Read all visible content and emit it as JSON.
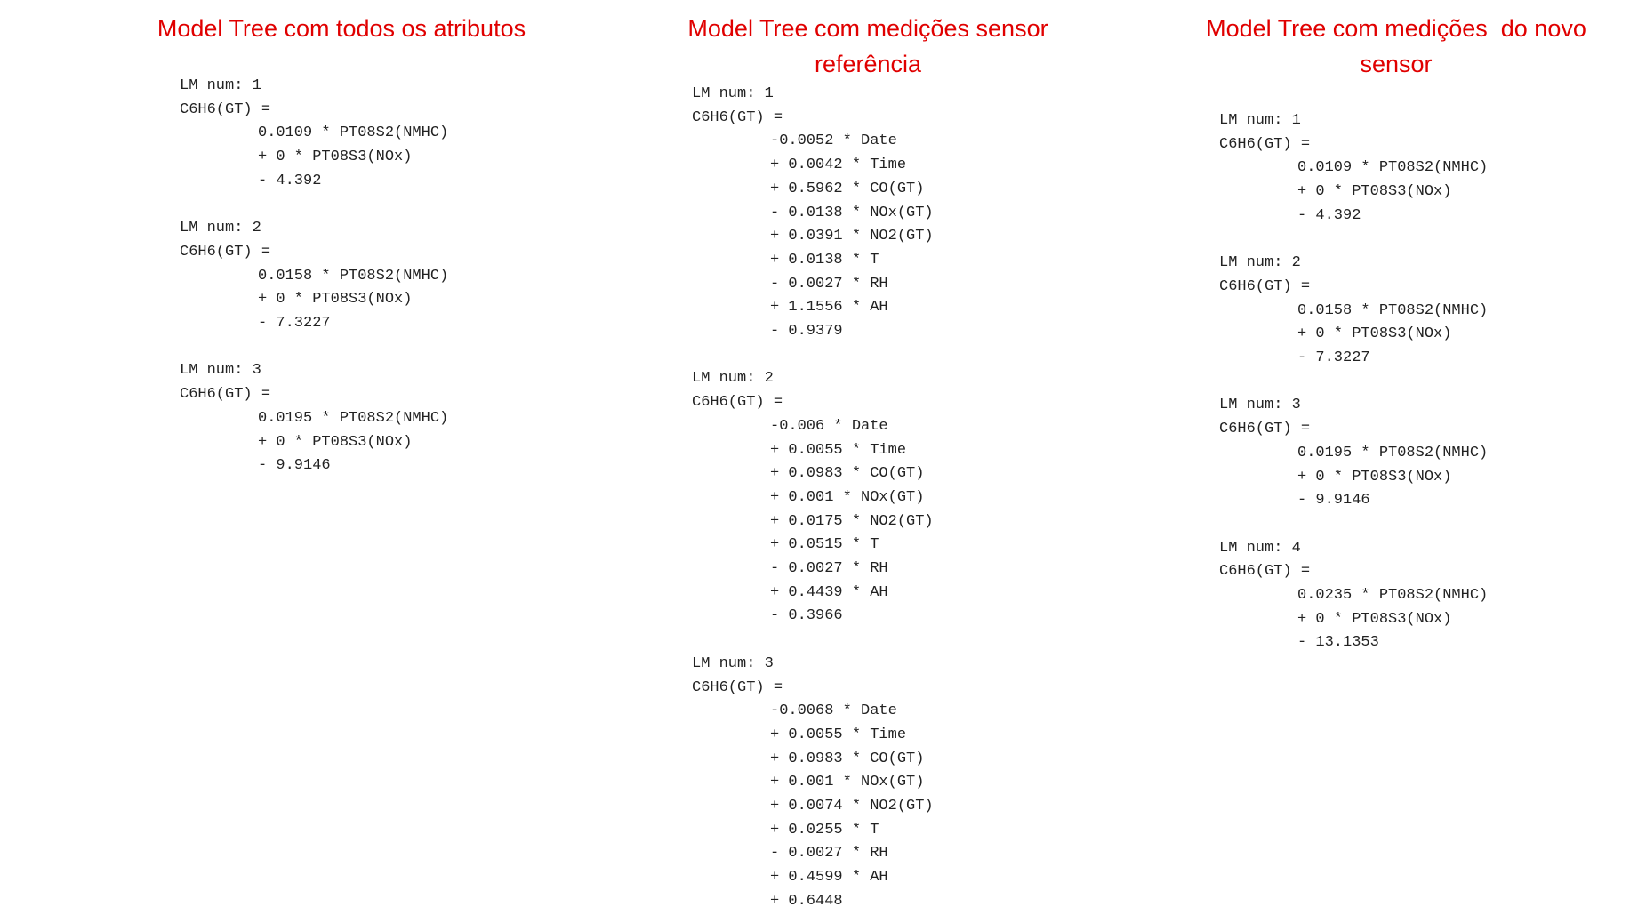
{
  "columns": [
    {
      "title": [
        "Model Tree com todos os atributos"
      ],
      "models": [
        {
          "header": "LM num: 1",
          "equation": "C6H6(GT) =",
          "terms": [
            "0.0109 * PT08S2(NMHC)",
            "+ 0 * PT08S3(NOx)",
            "- 4.392"
          ]
        },
        {
          "header": "LM num: 2",
          "equation": "C6H6(GT) =",
          "terms": [
            "0.0158 * PT08S2(NMHC)",
            "+ 0 * PT08S3(NOx)",
            "- 7.3227"
          ]
        },
        {
          "header": "LM num: 3",
          "equation": "C6H6(GT) =",
          "terms": [
            "0.0195 * PT08S2(NMHC)",
            "+ 0 * PT08S3(NOx)",
            "- 9.9146"
          ]
        }
      ]
    },
    {
      "title": [
        "Model Tree com medições sensor",
        "referência"
      ],
      "models": [
        {
          "header": "LM num: 1",
          "equation": "C6H6(GT) =",
          "terms": [
            "-0.0052 * Date",
            "+ 0.0042 * Time",
            "+ 0.5962 * CO(GT)",
            "- 0.0138 * NOx(GT)",
            "+ 0.0391 * NO2(GT)",
            "+ 0.0138 * T",
            "- 0.0027 * RH",
            "+ 1.1556 * AH",
            "- 0.9379"
          ]
        },
        {
          "header": "LM num: 2",
          "equation": "C6H6(GT) =",
          "terms": [
            "-0.006 * Date",
            "+ 0.0055 * Time",
            "+ 0.0983 * CO(GT)",
            "+ 0.001 * NOx(GT)",
            "+ 0.0175 * NO2(GT)",
            "+ 0.0515 * T",
            "- 0.0027 * RH",
            "+ 0.4439 * AH",
            "- 0.3966"
          ]
        },
        {
          "header": "LM num: 3",
          "equation": "C6H6(GT) =",
          "terms": [
            "-0.0068 * Date",
            "+ 0.0055 * Time",
            "+ 0.0983 * CO(GT)",
            "+ 0.001 * NOx(GT)",
            "+ 0.0074 * NO2(GT)",
            "+ 0.0255 * T",
            "- 0.0027 * RH",
            "+ 0.4599 * AH",
            "+ 0.6448"
          ]
        }
      ]
    },
    {
      "title": [
        "Model Tree com medições  do novo",
        "sensor"
      ],
      "models": [
        {
          "header": "LM num: 1",
          "equation": "C6H6(GT) =",
          "terms": [
            "0.0109 * PT08S2(NMHC)",
            "+ 0 * PT08S3(NOx)",
            "- 4.392"
          ]
        },
        {
          "header": "LM num: 2",
          "equation": "C6H6(GT) =",
          "terms": [
            "0.0158 * PT08S2(NMHC)",
            "+ 0 * PT08S3(NOx)",
            "- 7.3227"
          ]
        },
        {
          "header": "LM num: 3",
          "equation": "C6H6(GT) =",
          "terms": [
            "0.0195 * PT08S2(NMHC)",
            "+ 0 * PT08S3(NOx)",
            "- 9.9146"
          ]
        },
        {
          "header": "LM num: 4",
          "equation": "C6H6(GT) =",
          "terms": [
            "0.0235 * PT08S2(NMHC)",
            "+ 0 * PT08S3(NOx)",
            "- 13.1353"
          ]
        }
      ]
    }
  ]
}
